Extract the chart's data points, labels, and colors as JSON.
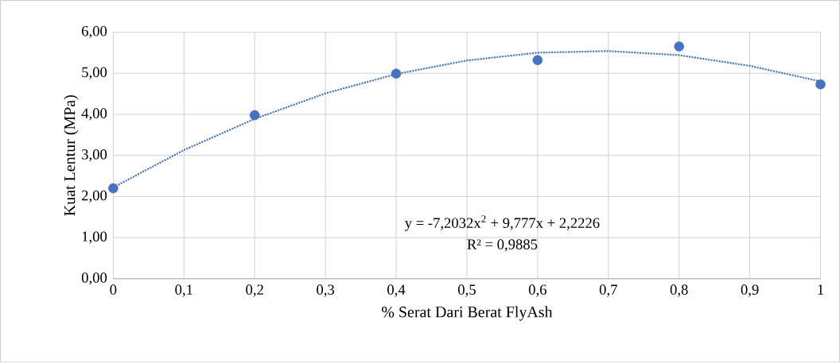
{
  "chart_data": {
    "type": "scatter",
    "xlabel": "% Serat Dari Berat FlyAsh",
    "ylabel": "Kuat Lentur (MPa)",
    "xlim": [
      0,
      1
    ],
    "ylim": [
      0,
      6
    ],
    "xticks": [
      0,
      {
        "value": 0.1,
        "label": "0,1"
      },
      {
        "value": 0.2,
        "label": "0,2"
      },
      {
        "value": 0.3,
        "label": "0,3"
      },
      {
        "value": 0.4,
        "label": "0,4"
      },
      {
        "value": 0.5,
        "label": "0,5"
      },
      {
        "value": 0.6,
        "label": "0,6"
      },
      {
        "value": 0.7,
        "label": "0,7"
      },
      {
        "value": 0.8,
        "label": "0,8"
      },
      {
        "value": 0.9,
        "label": "0,9"
      },
      1
    ],
    "yticks": [
      {
        "value": 0,
        "label": "0,00"
      },
      {
        "value": 1,
        "label": "1,00"
      },
      {
        "value": 2,
        "label": "2,00"
      },
      {
        "value": 3,
        "label": "3,00"
      },
      {
        "value": 4,
        "label": "4,00"
      },
      {
        "value": 5,
        "label": "5,00"
      },
      {
        "value": 6,
        "label": "6,00"
      }
    ],
    "grid": true,
    "series": [
      {
        "color": "#4472c4",
        "marker": "circle",
        "x": [
          0,
          0.2,
          0.4,
          0.6,
          0.8,
          1
        ],
        "values": [
          2.2,
          3.98,
          4.99,
          5.32,
          5.65,
          4.73
        ]
      },
      {
        "type": "line",
        "color": "#4472c4",
        "marker": "none",
        "line_style": "dotted",
        "x": [
          0,
          0.1,
          0.2,
          0.3,
          0.4,
          0.5,
          0.6,
          0.7,
          0.8,
          0.9,
          1
        ],
        "values": [
          2.22,
          3.13,
          3.89,
          4.51,
          4.98,
          5.31,
          5.5,
          5.54,
          5.44,
          5.18,
          4.8
        ]
      }
    ],
    "annotations": [
      "y = -7,2032x$^{2}$ + 9,777x + 2,2226",
      "R² = 0,9885"
    ]
  }
}
